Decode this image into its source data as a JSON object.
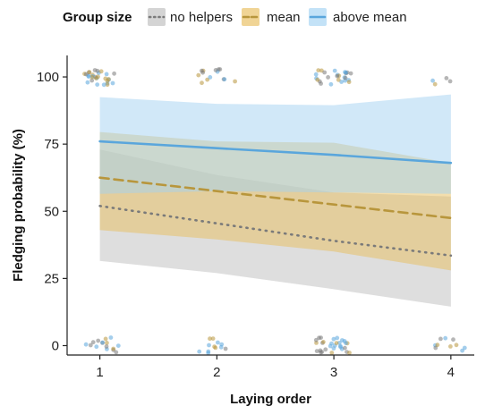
{
  "chart_data": {
    "type": "line",
    "title": "",
    "xlabel": "Laying order",
    "ylabel": "Fledging probability (%)",
    "x": [
      1,
      2,
      3,
      4
    ],
    "xlim": [
      0.72,
      4.2
    ],
    "ylim": [
      -3.5,
      108
    ],
    "x_ticks": [
      "1",
      "2",
      "3",
      "4"
    ],
    "y_ticks": [
      0,
      25,
      50,
      75,
      100
    ],
    "grid": false,
    "legend": {
      "title": "Group size",
      "placement": "top",
      "entries": [
        "no helpers",
        "mean",
        "above mean"
      ]
    },
    "series": [
      {
        "name": "no helpers",
        "color": "#7a7a7a",
        "dash": "dotted",
        "fill": "#bdbdbd",
        "values": [
          52,
          45.5,
          39,
          33.5
        ],
        "lower": [
          31.5,
          27,
          21,
          14.5
        ],
        "upper": [
          73,
          63.5,
          57,
          55.5
        ]
      },
      {
        "name": "mean",
        "color": "#b8963c",
        "dash": "dashed",
        "fill": "#e8bd5c",
        "values": [
          62.5,
          57.5,
          52.5,
          47.5
        ],
        "lower": [
          43,
          39.5,
          35,
          28
        ],
        "upper": [
          79.5,
          76,
          75.5,
          68
        ]
      },
      {
        "name": "above mean",
        "color": "#5aa6dc",
        "dash": "solid",
        "fill": "#a3d2f2",
        "values": [
          76,
          73.5,
          71,
          68
        ],
        "lower": [
          56.5,
          57.5,
          57,
          56.5
        ],
        "upper": [
          92.5,
          90,
          89.5,
          93.5
        ]
      }
    ]
  }
}
